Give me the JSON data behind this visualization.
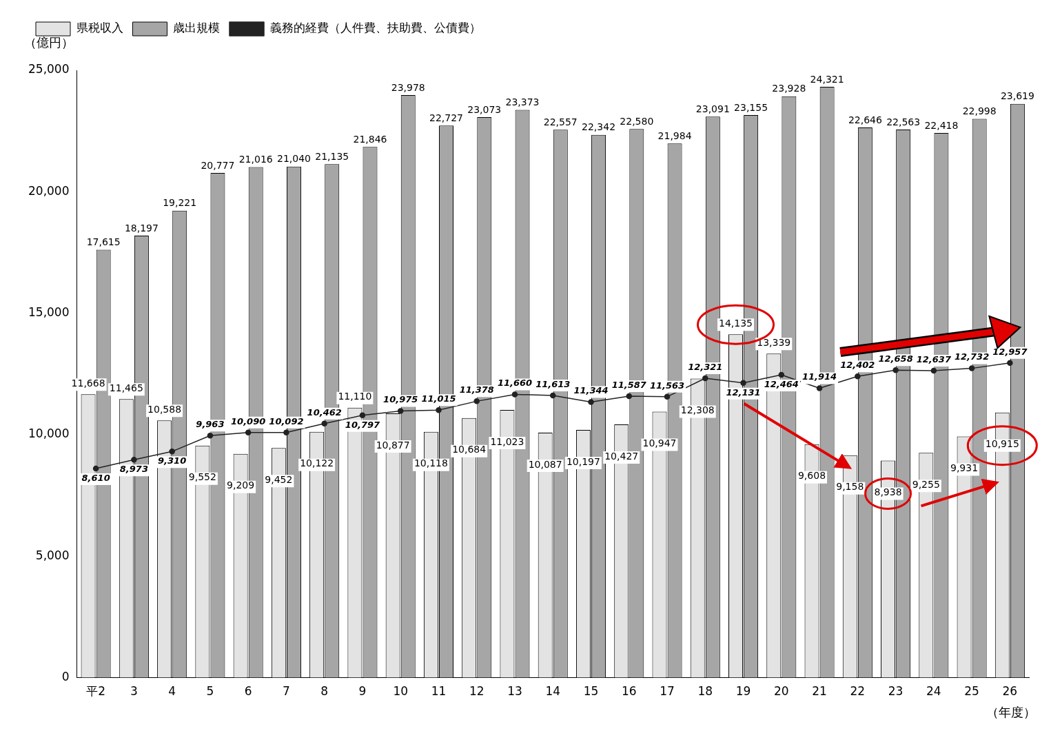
{
  "chart_data": {
    "type": "bar",
    "ylabel": "（億円）",
    "xlabel": "（年度）",
    "categories": [
      "平2",
      "3",
      "4",
      "5",
      "6",
      "7",
      "8",
      "9",
      "10",
      "11",
      "12",
      "13",
      "14",
      "15",
      "16",
      "17",
      "18",
      "19",
      "20",
      "21",
      "22",
      "23",
      "24",
      "25",
      "26"
    ],
    "series": [
      {
        "name": "県税収入",
        "color": "#e3e3e3",
        "values": [
          11668,
          11465,
          10588,
          9552,
          9209,
          9452,
          10122,
          11110,
          10877,
          10118,
          10684,
          11023,
          10087,
          10197,
          10427,
          10947,
          12308,
          14135,
          13339,
          9608,
          9158,
          8938,
          9255,
          9931,
          10915
        ],
        "value_labels": [
          "11,668",
          "11,465",
          "10,588",
          "9,552",
          "9,209",
          "9,452",
          "10,122",
          "11,110",
          "10,877",
          "10,118",
          "10,684",
          "11,023",
          "10,087",
          "10,197",
          "10,427",
          "10,947",
          "12,308",
          "14,135",
          "13,339",
          "9,608",
          "9,158",
          "8,938",
          "9,255",
          "9,931",
          "10,915"
        ]
      },
      {
        "name": "歳出規模",
        "color": "#a6a6a6",
        "values": [
          17615,
          18197,
          19221,
          20777,
          21016,
          21040,
          21135,
          21846,
          23978,
          22727,
          23073,
          23373,
          22557,
          22342,
          22580,
          21984,
          23091,
          23155,
          23928,
          24321,
          22646,
          22563,
          22418,
          22998,
          23619
        ],
        "value_labels": [
          "17,615",
          "18,197",
          "19,221",
          "20,777",
          "21,016",
          "21,040",
          "21,135",
          "21,846",
          "23,978",
          "22,727",
          "23,073",
          "23,373",
          "22,557",
          "22,342",
          "22,580",
          "21,984",
          "23,091",
          "23,155",
          "23,928",
          "24,321",
          "22,646",
          "22,563",
          "22,418",
          "22,998",
          "23,619"
        ]
      },
      {
        "name": "義務的経費（人件費、扶助費、公債費）",
        "type": "line",
        "color": "#222222",
        "marker": "circle",
        "values": [
          8610,
          8973,
          9310,
          9963,
          10090,
          10092,
          10462,
          10797,
          10975,
          11015,
          11378,
          11660,
          11613,
          11344,
          11587,
          11563,
          12321,
          12131,
          12464,
          11914,
          12402,
          12658,
          12637,
          12732,
          12957
        ],
        "value_labels": [
          "8,610",
          "8,973",
          "9,310",
          "9,963",
          "10,090",
          "10,092",
          "10,462",
          "10,797",
          "10,975",
          "11,015",
          "11,378",
          "11,660",
          "11,613",
          "11,344",
          "11,587",
          "11,563",
          "12,321",
          "12,131",
          "12,464",
          "11,914",
          "12,402",
          "12,658",
          "12,637",
          "12,732",
          "12,957"
        ]
      }
    ],
    "ylim": [
      0,
      25000
    ],
    "yticks": [
      {
        "value": 0,
        "label": "0"
      },
      {
        "value": 5000,
        "label": "5,000"
      },
      {
        "value": 10000,
        "label": "10,000"
      },
      {
        "value": 15000,
        "label": "15,000"
      },
      {
        "value": 20000,
        "label": "20,000"
      },
      {
        "value": 25000,
        "label": "25,000"
      }
    ],
    "data_labels": true,
    "grid": false,
    "legend": "top left"
  }
}
